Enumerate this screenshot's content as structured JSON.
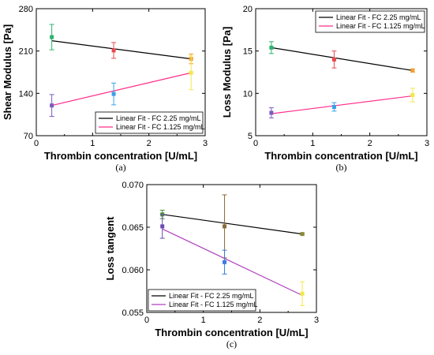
{
  "chart_data": [
    {
      "type": "scatter",
      "caption": "(a)",
      "xlabel": "Thrombin concentration [U/mL]",
      "ylabel": "Shear Modulus [Pa]",
      "xlim": [
        0,
        3
      ],
      "ylim": [
        70,
        280
      ],
      "xticks": [
        0,
        1,
        2,
        3
      ],
      "yticks": [
        70,
        140,
        210,
        280
      ],
      "legend_position": "bottom-right",
      "series": [
        {
          "name": "Linear Fit - FC 2.25 mg/mL",
          "line_color": "#000000",
          "fit": [
            [
              0.275,
              227
            ],
            [
              2.75,
              197
            ]
          ],
          "points": [
            {
              "x": 0.275,
              "y": 233,
              "err": 21,
              "color": "#2ab46e"
            },
            {
              "x": 1.375,
              "y": 211,
              "err": 13,
              "color": "#e8484c"
            },
            {
              "x": 2.75,
              "y": 197,
              "err": 8,
              "color": "#f0a030"
            }
          ]
        },
        {
          "name": "Linear Fit - FC 1.125 mg/mL",
          "line_color": "#ff2d8a",
          "fit": [
            [
              0.275,
              120
            ],
            [
              2.75,
              174
            ]
          ],
          "points": [
            {
              "x": 0.275,
              "y": 120,
              "err": 18,
              "color": "#7a5cc0"
            },
            {
              "x": 1.375,
              "y": 139,
              "err": 18,
              "color": "#3aa0e8"
            },
            {
              "x": 2.75,
              "y": 174,
              "err": 28,
              "color": "#f2e84a"
            }
          ]
        }
      ]
    },
    {
      "type": "scatter",
      "caption": "(b)",
      "xlabel": "Thrombin concentration [U/mL]",
      "ylabel": "Loss Modulus [Pa]",
      "xlim": [
        0,
        3
      ],
      "ylim": [
        5,
        20
      ],
      "xticks": [
        0,
        1,
        2,
        3
      ],
      "yticks": [
        5,
        10,
        15,
        20
      ],
      "legend_position": "top-right",
      "series": [
        {
          "name": "Linear Fit - FC 2.25 mg/mL",
          "line_color": "#000000",
          "fit": [
            [
              0.275,
              15.4
            ],
            [
              2.75,
              12.7
            ]
          ],
          "points": [
            {
              "x": 0.275,
              "y": 15.4,
              "err": 0.7,
              "color": "#2ab46e"
            },
            {
              "x": 1.375,
              "y": 14.0,
              "err": 1.0,
              "color": "#e8484c"
            },
            {
              "x": 2.75,
              "y": 12.7,
              "err": 0.2,
              "color": "#f0a030"
            }
          ]
        },
        {
          "name": "Linear Fit - FC 1.125 mg/mL",
          "line_color": "#ff2d8a",
          "fit": [
            [
              0.275,
              7.6
            ],
            [
              2.75,
              9.7
            ]
          ],
          "points": [
            {
              "x": 0.275,
              "y": 7.7,
              "err": 0.6,
              "color": "#7a5cc0"
            },
            {
              "x": 1.375,
              "y": 8.4,
              "err": 0.5,
              "color": "#3aa0e8"
            },
            {
              "x": 2.75,
              "y": 9.8,
              "err": 0.8,
              "color": "#f2e84a"
            }
          ]
        }
      ]
    },
    {
      "type": "scatter",
      "caption": "(c)",
      "xlabel": "Thrombin concentration [U/mL]",
      "ylabel": "Loss tangent",
      "xlim": [
        0,
        3
      ],
      "ylim": [
        0.055,
        0.07
      ],
      "xticks": [
        0,
        1,
        2,
        3
      ],
      "yticks": [
        0.055,
        0.06,
        0.065,
        0.07
      ],
      "ytick_labels": [
        "0.055",
        "0.060",
        "0.065",
        "0.070"
      ],
      "legend_position": "bottom-left",
      "series": [
        {
          "name": "Linear Fit - FC 2.25 mg/mL",
          "line_color": "#000000",
          "fit": [
            [
              0.275,
              0.0665
            ],
            [
              2.75,
              0.0642
            ]
          ],
          "points": [
            {
              "x": 0.275,
              "y": 0.0665,
              "err": 0.0005,
              "color": "#4a8f3a"
            },
            {
              "x": 1.375,
              "y": 0.0651,
              "err": 0.0037,
              "color": "#8a6a3a"
            },
            {
              "x": 2.75,
              "y": 0.0642,
              "err": 0.0001,
              "color": "#8a8a3a"
            }
          ]
        },
        {
          "name": "Linear Fit - FC 1.125 mg/mL",
          "line_color": "#b040c0",
          "fit": [
            [
              0.275,
              0.0648
            ],
            [
              2.75,
              0.057
            ]
          ],
          "points": [
            {
              "x": 0.275,
              "y": 0.0651,
              "err": 0.0014,
              "color": "#6a4ab0"
            },
            {
              "x": 1.375,
              "y": 0.0609,
              "err": 0.0014,
              "color": "#3a7ae0"
            },
            {
              "x": 2.75,
              "y": 0.0572,
              "err": 0.0014,
              "color": "#f2e84a"
            }
          ]
        }
      ]
    }
  ]
}
